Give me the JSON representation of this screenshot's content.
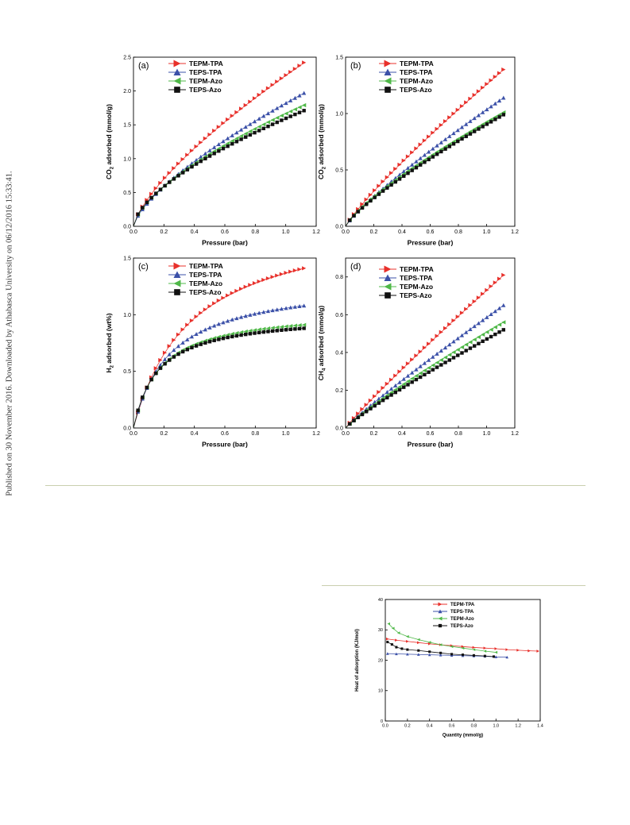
{
  "side_note": "Published on 30 November 2016. Downloaded by Athabasca University on 06/12/2016 15:33:41.",
  "colors": {
    "TEPM-TPA": "#e8302b",
    "TEPS-TPA": "#3b50a8",
    "TEPM-Azo": "#4fb848",
    "TEPS-Azo": "#111111"
  },
  "chart_data": [
    {
      "type": "scatter",
      "panel_label": "(a)",
      "xlabel": "Pressure (bar)",
      "ylabel": "CO2 adsorbed (mmol/g)",
      "ylabel_parts": {
        "pre": "CO",
        "sub": "2",
        "post": " adsorbed (mmol/g)"
      },
      "xlim": [
        0,
        1.2
      ],
      "ylim": [
        0,
        2.5
      ],
      "xticks": [
        "0.0",
        "0.2",
        "0.4",
        "0.6",
        "0.8",
        "1.0",
        "1.2"
      ],
      "yticks": [
        "0.0",
        "0.5",
        "1.0",
        "1.5",
        "2.0",
        "2.5"
      ],
      "legend": "top-left",
      "series": [
        {
          "name": "TEPM-TPA",
          "marker": "triangle-right",
          "curve": "power",
          "x_end": 1.12,
          "y_end": 2.42,
          "shape": 0.72
        },
        {
          "name": "TEPS-TPA",
          "marker": "triangle-up",
          "curve": "power",
          "x_end": 1.12,
          "y_end": 1.97,
          "shape": 0.7
        },
        {
          "name": "TEPM-Azo",
          "marker": "triangle-left",
          "curve": "power",
          "x_end": 1.12,
          "y_end": 1.79,
          "shape": 0.64
        },
        {
          "name": "TEPS-Azo",
          "marker": "square",
          "curve": "power",
          "x_end": 1.12,
          "y_end": 1.71,
          "shape": 0.62
        }
      ]
    },
    {
      "type": "scatter",
      "panel_label": "(b)",
      "xlabel": "Pressure (bar)",
      "ylabel": "CO2 adsorbed (mmol/g)",
      "ylabel_parts": {
        "pre": "CO",
        "sub": "2",
        "post": " adsorbed (mmol/g)"
      },
      "xlim": [
        0,
        1.2
      ],
      "ylim": [
        0,
        1.5
      ],
      "xticks": [
        "0.0",
        "0.2",
        "0.4",
        "0.6",
        "0.8",
        "1.0",
        "1.2"
      ],
      "yticks": [
        "0.0",
        "0.5",
        "1.0",
        "1.5"
      ],
      "legend": "top-left",
      "series": [
        {
          "name": "TEPM-TPA",
          "marker": "triangle-right",
          "curve": "power",
          "x_end": 1.12,
          "y_end": 1.39,
          "shape": 0.87
        },
        {
          "name": "TEPS-TPA",
          "marker": "triangle-up",
          "curve": "power",
          "x_end": 1.12,
          "y_end": 1.14,
          "shape": 0.85
        },
        {
          "name": "TEPM-Azo",
          "marker": "triangle-left",
          "curve": "power",
          "x_end": 1.12,
          "y_end": 1.01,
          "shape": 0.78
        },
        {
          "name": "TEPS-Azo",
          "marker": "square",
          "curve": "power",
          "x_end": 1.12,
          "y_end": 0.99,
          "shape": 0.8
        }
      ]
    },
    {
      "type": "scatter",
      "panel_label": "(c)",
      "xlabel": "Pressure (bar)",
      "ylabel": "H2 adsorbed (wt%)",
      "ylabel_parts": {
        "pre": "H",
        "sub": "2",
        "post": " adsorbed (wt%)"
      },
      "xlim": [
        0,
        1.2
      ],
      "ylim": [
        0,
        1.5
      ],
      "xticks": [
        "0.0",
        "0.2",
        "0.4",
        "0.6",
        "0.8",
        "1.0",
        "1.2"
      ],
      "yticks": [
        "0.0",
        "0.5",
        "1.0",
        "1.5"
      ],
      "legend": "top-left",
      "series": [
        {
          "name": "TEPM-TPA",
          "marker": "triangle-right",
          "curve": "langmuir",
          "x_end": 1.12,
          "y_end": 1.41,
          "shape": 0.38
        },
        {
          "name": "TEPS-TPA",
          "marker": "triangle-up",
          "curve": "langmuir",
          "x_end": 1.12,
          "y_end": 1.08,
          "shape": 0.24
        },
        {
          "name": "TEPM-Azo",
          "marker": "triangle-left",
          "curve": "langmuir",
          "x_end": 1.12,
          "y_end": 0.91,
          "shape": 0.17
        },
        {
          "name": "TEPS-Azo",
          "marker": "square",
          "curve": "langmuir",
          "x_end": 1.12,
          "y_end": 0.88,
          "shape": 0.16
        }
      ]
    },
    {
      "type": "scatter",
      "panel_label": "(d)",
      "xlabel": "Pressure (bar)",
      "ylabel": "CH4 adsorbed (mmol/g)",
      "ylabel_parts": {
        "pre": "CH",
        "sub": "4",
        "post": " adsorbed (mmol/g)"
      },
      "xlim": [
        0,
        1.2
      ],
      "ylim": [
        0,
        0.9
      ],
      "xticks": [
        "0.0",
        "0.2",
        "0.4",
        "0.6",
        "0.8",
        "1.0",
        "1.2"
      ],
      "yticks": [
        "0.0",
        "0.2",
        "0.4",
        "0.6",
        "0.8"
      ],
      "legend": "top-left",
      "series": [
        {
          "name": "TEPM-TPA",
          "marker": "triangle-right",
          "curve": "power",
          "x_end": 1.12,
          "y_end": 0.81,
          "shape": 0.93
        },
        {
          "name": "TEPS-TPA",
          "marker": "triangle-up",
          "curve": "power",
          "x_end": 1.12,
          "y_end": 0.65,
          "shape": 0.92
        },
        {
          "name": "TEPM-Azo",
          "marker": "triangle-left",
          "curve": "power",
          "x_end": 1.12,
          "y_end": 0.56,
          "shape": 0.88
        },
        {
          "name": "TEPS-Azo",
          "marker": "square",
          "curve": "power",
          "x_end": 1.12,
          "y_end": 0.52,
          "shape": 0.88
        }
      ]
    },
    {
      "type": "line",
      "xlabel": "Quantity (mmol/g)",
      "ylabel": "Heat of adsorption (KJ/mol)",
      "xlim": [
        0,
        1.4
      ],
      "ylim": [
        0,
        40
      ],
      "xticks": [
        "0.0",
        "0.2",
        "0.4",
        "0.6",
        "0.8",
        "1.0",
        "1.2",
        "1.4"
      ],
      "yticks": [
        "0",
        "10",
        "20",
        "30",
        "40"
      ],
      "legend": "top-right",
      "series": [
        {
          "name": "TEPM-TPA",
          "marker": "triangle-right",
          "x": [
            0.02,
            0.1,
            0.2,
            0.3,
            0.4,
            0.5,
            0.6,
            0.7,
            0.8,
            0.9,
            1.0,
            1.1,
            1.2,
            1.3,
            1.38
          ],
          "y": [
            27.0,
            26.6,
            26.2,
            25.8,
            25.4,
            25.1,
            24.8,
            24.5,
            24.2,
            24.0,
            23.8,
            23.5,
            23.3,
            23.1,
            23.0
          ]
        },
        {
          "name": "TEPS-TPA",
          "marker": "triangle-up",
          "x": [
            0.02,
            0.1,
            0.2,
            0.3,
            0.4,
            0.5,
            0.6,
            0.7,
            0.8,
            0.9,
            1.0,
            1.1
          ],
          "y": [
            22.2,
            22.1,
            22.0,
            21.9,
            21.8,
            21.7,
            21.6,
            21.5,
            21.4,
            21.3,
            21.1,
            21.0
          ]
        },
        {
          "name": "TEPM-Azo",
          "marker": "triangle-left",
          "x": [
            0.03,
            0.07,
            0.12,
            0.2,
            0.3,
            0.4,
            0.5,
            0.6,
            0.7,
            0.8,
            0.9,
            1.0
          ],
          "y": [
            32.0,
            30.5,
            29.0,
            27.8,
            26.8,
            25.9,
            25.1,
            24.5,
            24.0,
            23.5,
            23.0,
            22.6
          ]
        },
        {
          "name": "TEPS-Azo",
          "marker": "square",
          "x": [
            0.02,
            0.06,
            0.1,
            0.15,
            0.2,
            0.3,
            0.4,
            0.5,
            0.6,
            0.7,
            0.8,
            0.9,
            0.98
          ],
          "y": [
            26.0,
            25.2,
            24.3,
            23.8,
            23.5,
            23.2,
            22.8,
            22.4,
            22.0,
            21.8,
            21.6,
            21.4,
            21.2
          ]
        }
      ]
    }
  ]
}
